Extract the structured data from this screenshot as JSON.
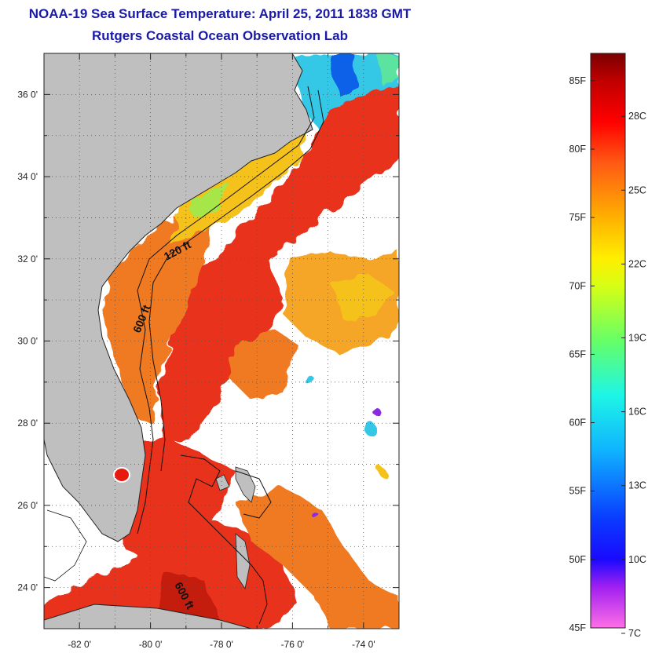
{
  "header": {
    "title": "NOAA-19 Sea Surface Temperature:  April 25, 2011 1838 GMT",
    "subtitle": "Rutgers Coastal Ocean Observation Lab"
  },
  "map": {
    "lon_range": [
      -83,
      -73
    ],
    "lat_range": [
      23,
      37
    ],
    "x_ticks": [
      {
        "value": -82,
        "label": "-82 0'"
      },
      {
        "value": -80,
        "label": "-80 0'"
      },
      {
        "value": -78,
        "label": "-78 0'"
      },
      {
        "value": -76,
        "label": "-76 0'"
      },
      {
        "value": -74,
        "label": "-74 0'"
      }
    ],
    "y_ticks": [
      {
        "value": 36,
        "label": "36 0'"
      },
      {
        "value": 34,
        "label": "34 0'"
      },
      {
        "value": 32,
        "label": "32 0'"
      },
      {
        "value": 30,
        "label": "30 0'"
      },
      {
        "value": 28,
        "label": "28 0'"
      },
      {
        "value": 26,
        "label": "26 0'"
      },
      {
        "value": 24,
        "label": "24 0'"
      }
    ],
    "contour_labels": [
      "120 ft",
      "600 ft",
      "600 ft"
    ],
    "colors": {
      "land": "#bfbfbf",
      "cloud": "#ffffff",
      "warm_stream": "#e8321e",
      "shelf": "#f07a22",
      "cool_shelf": "#f5c21a",
      "cold_water": "#35c8e6"
    }
  },
  "colorbar": {
    "fahrenheit_labels": [
      "85F",
      "80F",
      "75F",
      "70F",
      "65F",
      "60F",
      "55F",
      "50F",
      "45F"
    ],
    "celsius_labels": [
      "28C",
      "25C",
      "22C",
      "19C",
      "16C",
      "13C",
      "10C",
      "7C"
    ],
    "f_range": [
      45,
      87
    ],
    "gradient": [
      {
        "value": 45,
        "color": "#ff6ee6"
      },
      {
        "value": 48,
        "color": "#a020f0"
      },
      {
        "value": 50,
        "color": "#1a0aff"
      },
      {
        "value": 53,
        "color": "#0a3cff"
      },
      {
        "value": 58,
        "color": "#10b4ff"
      },
      {
        "value": 62,
        "color": "#1ef5e6"
      },
      {
        "value": 66,
        "color": "#66ff66"
      },
      {
        "value": 70,
        "color": "#d6ff14"
      },
      {
        "value": 72,
        "color": "#ffee00"
      },
      {
        "value": 75,
        "color": "#ffb000"
      },
      {
        "value": 79,
        "color": "#ff5a14"
      },
      {
        "value": 82,
        "color": "#ff0000"
      },
      {
        "value": 85,
        "color": "#c00000"
      },
      {
        "value": 87,
        "color": "#7a0000"
      }
    ]
  }
}
